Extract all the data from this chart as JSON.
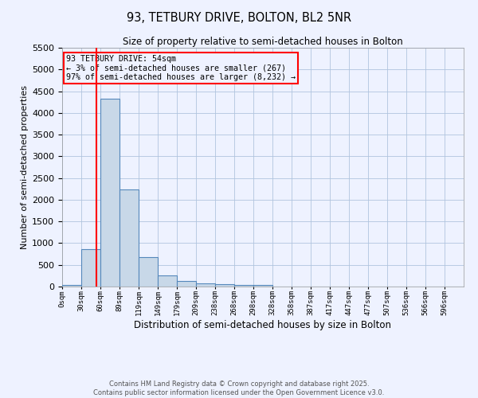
{
  "title": "93, TETBURY DRIVE, BOLTON, BL2 5NR",
  "subtitle": "Size of property relative to semi-detached houses in Bolton",
  "xlabel": "Distribution of semi-detached houses by size in Bolton",
  "ylabel": "Number of semi-detached properties",
  "bin_labels": [
    "0sqm",
    "30sqm",
    "60sqm",
    "89sqm",
    "119sqm",
    "149sqm",
    "179sqm",
    "209sqm",
    "238sqm",
    "268sqm",
    "298sqm",
    "328sqm",
    "358sqm",
    "387sqm",
    "417sqm",
    "447sqm",
    "477sqm",
    "507sqm",
    "536sqm",
    "566sqm",
    "596sqm"
  ],
  "bar_values": [
    30,
    860,
    4320,
    2240,
    680,
    255,
    120,
    65,
    60,
    45,
    30,
    0,
    0,
    0,
    0,
    0,
    0,
    0,
    0,
    0,
    0
  ],
  "bar_color": "#c8d8e8",
  "bar_edge_color": "#5588bb",
  "annotation_text": "93 TETBURY DRIVE: 54sqm\n← 3% of semi-detached houses are smaller (267)\n97% of semi-detached houses are larger (8,232) →",
  "property_line_x": 54,
  "bin_width": 30,
  "ylim": [
    0,
    5500
  ],
  "yticks": [
    0,
    500,
    1000,
    1500,
    2000,
    2500,
    3000,
    3500,
    4000,
    4500,
    5000,
    5500
  ],
  "footer_line1": "Contains HM Land Registry data © Crown copyright and database right 2025.",
  "footer_line2": "Contains public sector information licensed under the Open Government Licence v3.0.",
  "background_color": "#eef2ff",
  "grid_color": "#b0c4de"
}
